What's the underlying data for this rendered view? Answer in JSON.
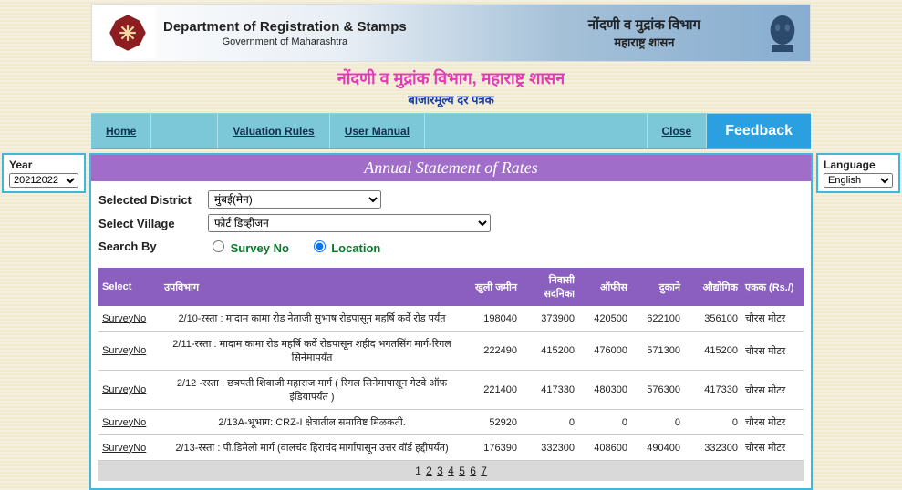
{
  "banner": {
    "dept_title": "Department of Registration & Stamps",
    "dept_sub": "Government of Maharashtra",
    "right_line1": "नोंदणी व मुद्रांक विभाग",
    "right_line2": "महाराष्ट्र शासन"
  },
  "hindi": {
    "title": "नोंदणी व मुद्रांक विभाग, महाराष्ट्र शासन",
    "sub": "बाजारमूल्य दर पत्रक"
  },
  "nav": {
    "home": "Home",
    "valuation": "Valuation Rules",
    "manual": "User Manual",
    "close": "Close",
    "feedback": "Feedback"
  },
  "side": {
    "year_label": "Year",
    "year_value": "20212022",
    "lang_label": "Language",
    "lang_value": "English"
  },
  "center_header": "Annual Statement of Rates",
  "filters": {
    "district_label": "Selected District",
    "district_value": "मुंबई(मेन)",
    "village_label": "Select Village",
    "village_value": "फोर्ट डिव्हीजन",
    "search_label": "Search By",
    "opt_survey": "Survey No",
    "opt_location": "Location"
  },
  "table": {
    "headers": {
      "select": "Select",
      "subdiv": "उपविभाग",
      "openland": "खुली जमीन",
      "residential": "निवासी सदनिका",
      "office": "ऑफीस",
      "shop": "दुकाने",
      "industrial": "औद्योगिक",
      "unit": "एकक (Rs./)"
    },
    "rows": [
      {
        "select": "SurveyNo",
        "subdiv": "2/10-रस्ता : मादाम कामा रोड नेताजी सुभाष रोडपासून महर्षि कर्वे रोड पर्यंत",
        "c1": "198040",
        "c2": "373900",
        "c3": "420500",
        "c4": "622100",
        "c5": "356100",
        "unit": "चौरस मीटर"
      },
      {
        "select": "SurveyNo",
        "subdiv": "2/11-रस्ता : मादाम कामा रोड महर्षि कर्वे रोडपासून शहीद भगतसिंग मार्ग-रिगल सिनेमापर्यंत",
        "c1": "222490",
        "c2": "415200",
        "c3": "476000",
        "c4": "571300",
        "c5": "415200",
        "unit": "चौरस मीटर"
      },
      {
        "select": "SurveyNo",
        "subdiv": "2/12 -रस्ता : छत्रपती शिवाजी महाराज मार्ग ( रिगल सिनेमापासून गेटवे ऑफ इंडियापर्यंत )",
        "c1": "221400",
        "c2": "417330",
        "c3": "480300",
        "c4": "576300",
        "c5": "417330",
        "unit": "चौरस मीटर"
      },
      {
        "select": "SurveyNo",
        "subdiv": "2/13A-भूभाग: CRZ-I क्षेत्रातील समाविष्ट मिळकती.",
        "c1": "52920",
        "c2": "0",
        "c3": "0",
        "c4": "0",
        "c5": "0",
        "unit": "चौरस मीटर"
      },
      {
        "select": "SurveyNo",
        "subdiv": "2/13-रस्ता : पी.डिमेलो मार्ग (वालचंद हिराचंद मार्गापासून उत्तर वॉर्ड हद्दीपर्यंत)",
        "c1": "176390",
        "c2": "332300",
        "c3": "408600",
        "c4": "490400",
        "c5": "332300",
        "unit": "चौरस मीटर"
      }
    ]
  },
  "pager": {
    "pages": [
      "1",
      "2",
      "3",
      "4",
      "5",
      "6",
      "7"
    ],
    "current": "1"
  },
  "colors": {
    "purple_header": "#8a5fc0",
    "purple_bar": "#a06dc8",
    "nav_bg": "#7cc7d8",
    "feedback": "#2aa0e0",
    "pink": "#e33bb5",
    "blue_text": "#1a3da0",
    "green": "#0a7a2a",
    "border": "#41b8d8"
  }
}
